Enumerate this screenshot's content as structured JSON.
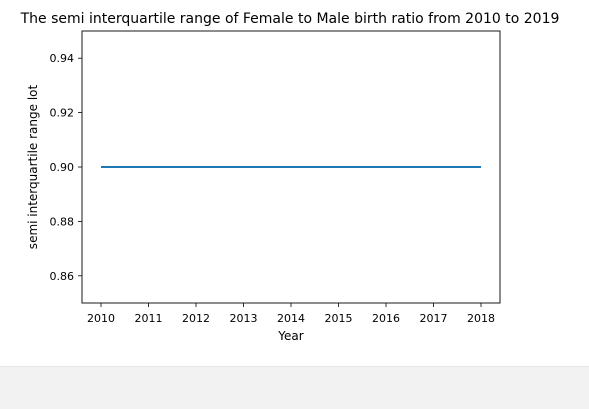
{
  "chart_data": {
    "type": "line",
    "title": "The semi interquartile range of Female to Male birth ratio from 2010 to 2019",
    "xlabel": "Year",
    "ylabel": "semi interquartile range lot",
    "x": [
      2010,
      2011,
      2012,
      2013,
      2014,
      2015,
      2016,
      2017,
      2018
    ],
    "series": [
      {
        "values": [
          0.9,
          0.9,
          0.9,
          0.9,
          0.9,
          0.9,
          0.9,
          0.9,
          0.9
        ],
        "color": "#1f77b4"
      }
    ],
    "xticks": [
      "2010",
      "2011",
      "2012",
      "2013",
      "2014",
      "2015",
      "2016",
      "2017",
      "2018"
    ],
    "yticks": [
      "0.86",
      "0.88",
      "0.90",
      "0.92",
      "0.94"
    ],
    "xlim": [
      2009.6,
      2018.4
    ],
    "ylim": [
      0.85,
      0.95
    ],
    "grid": false
  }
}
